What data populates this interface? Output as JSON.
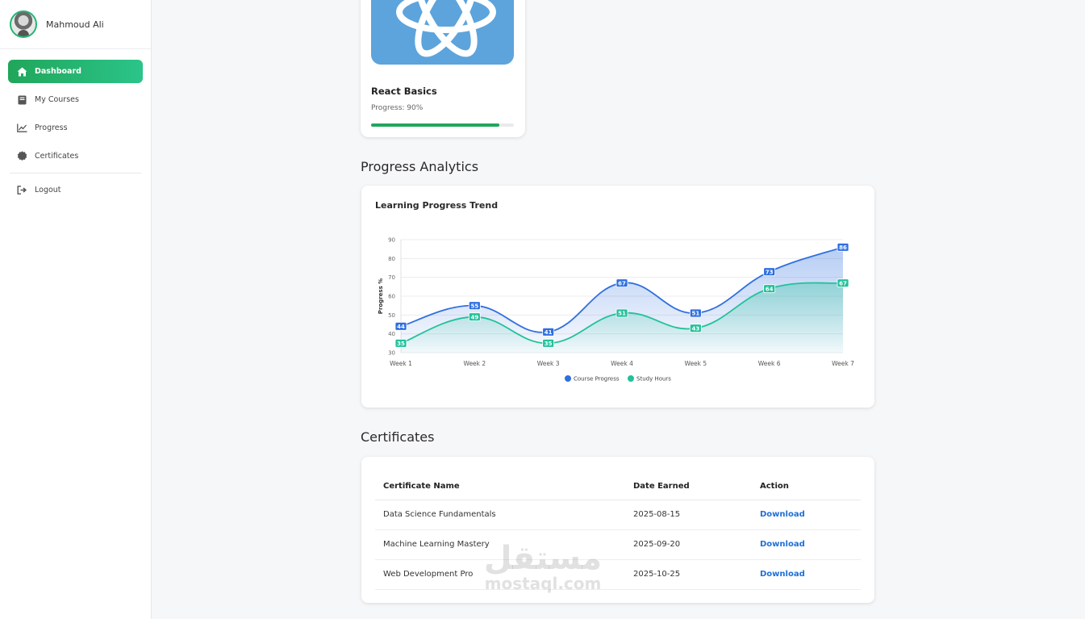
{
  "profile": {
    "name": "Mahmoud Ali"
  },
  "nav": {
    "items": [
      {
        "label": "Dashboard",
        "icon": "home-icon",
        "active": true
      },
      {
        "label": "My Courses",
        "icon": "book-icon"
      },
      {
        "label": "Progress",
        "icon": "chart-line-icon"
      },
      {
        "label": "Certificates",
        "icon": "certificate-icon"
      }
    ],
    "logout": {
      "label": "Logout",
      "icon": "logout-icon"
    }
  },
  "course": {
    "title": "React Basics",
    "progress_text": "Progress: 90%",
    "progress": 0.9,
    "icon": "react-atom-icon",
    "thumb_color": "#5da4dc"
  },
  "sections": {
    "analytics": "Progress Analytics",
    "certificates": "Certificates"
  },
  "chart_data": {
    "type": "line",
    "title": "Learning Progress Trend",
    "ylabel": "Progress %",
    "xlabel": "",
    "categories": [
      "Week 1",
      "Week 2",
      "Week 3",
      "Week 4",
      "Week 5",
      "Week 6",
      "Week 7"
    ],
    "ylim": [
      30,
      90
    ],
    "yticks": [
      30,
      40,
      50,
      60,
      70,
      80,
      90
    ],
    "grid": true,
    "legend": "bottom",
    "series": [
      {
        "name": "Course Progress",
        "values": [
          44,
          55,
          41,
          67,
          51,
          73,
          86
        ],
        "color": "#2f6fe0"
      },
      {
        "name": "Study Hours",
        "values": [
          35,
          49,
          35,
          51,
          43,
          64,
          67
        ],
        "color": "#22c19a"
      }
    ]
  },
  "certificates": {
    "headers": {
      "name": "Certificate Name",
      "date": "Date Earned",
      "action": "Action"
    },
    "rows": [
      {
        "name": "Data Science Fundamentals",
        "date": "2025-08-15",
        "action": "Download"
      },
      {
        "name": "Machine Learning Mastery",
        "date": "2025-09-20",
        "action": "Download"
      },
      {
        "name": "Web Development Pro",
        "date": "2025-10-25",
        "action": "Download"
      }
    ]
  },
  "watermark": {
    "arabic": "مستقل",
    "latin": "mostaql.com"
  }
}
